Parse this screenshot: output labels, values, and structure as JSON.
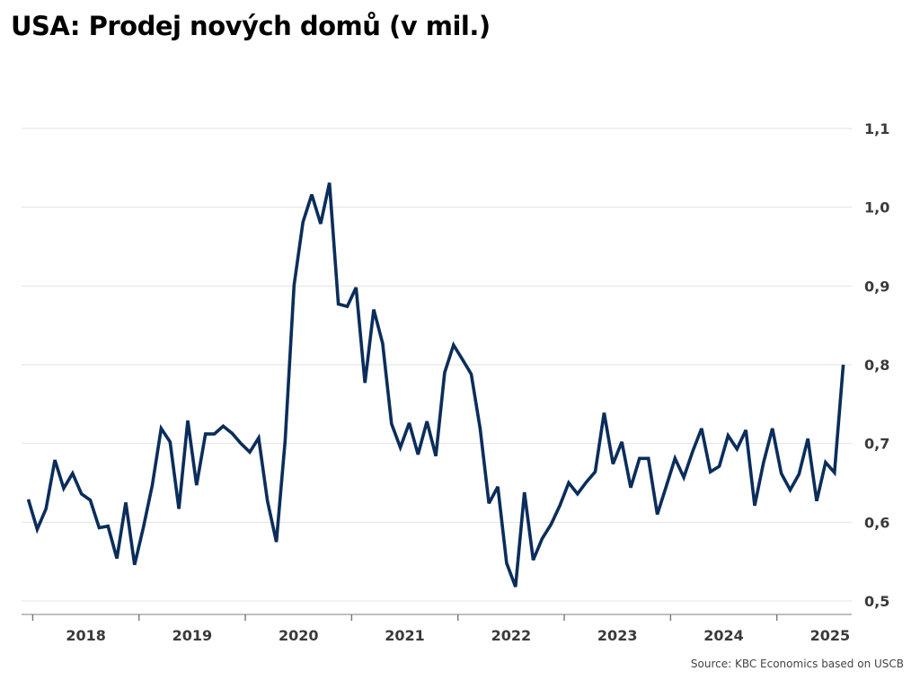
{
  "chart_data": {
    "type": "line",
    "title": "USA: Prodej nových domů (v mil.)",
    "source": "Source: KBC Economics based on USCB",
    "ylim": [
      0.5,
      1.1
    ],
    "yticks": [
      "0,5",
      "0,6",
      "0,7",
      "0,8",
      "0,9",
      "1,0",
      "1,1"
    ],
    "ytick_values": [
      0.5,
      0.6,
      0.7,
      0.8,
      0.9,
      1.0,
      1.1
    ],
    "xtick_labels": [
      "2018",
      "2019",
      "2020",
      "2021",
      "2022",
      "2023",
      "2024",
      "2025"
    ],
    "grid": true,
    "line_color": "#0b2d5b",
    "x": [
      "2017-12",
      "2018-01",
      "2018-02",
      "2018-03",
      "2018-04",
      "2018-05",
      "2018-06",
      "2018-07",
      "2018-08",
      "2018-09",
      "2018-10",
      "2018-11",
      "2018-12",
      "2019-01",
      "2019-02",
      "2019-03",
      "2019-04",
      "2019-05",
      "2019-06",
      "2019-07",
      "2019-08",
      "2019-09",
      "2019-10",
      "2019-11",
      "2019-12",
      "2020-01",
      "2020-02",
      "2020-03",
      "2020-04",
      "2020-05",
      "2020-06",
      "2020-07",
      "2020-08",
      "2020-09",
      "2020-10",
      "2020-11",
      "2020-12",
      "2021-01",
      "2021-02",
      "2021-03",
      "2021-04",
      "2021-05",
      "2021-06",
      "2021-07",
      "2021-08",
      "2021-09",
      "2021-10",
      "2021-11",
      "2021-12",
      "2022-01",
      "2022-02",
      "2022-03",
      "2022-04",
      "2022-05",
      "2022-06",
      "2022-07",
      "2022-08",
      "2022-09",
      "2022-10",
      "2022-11",
      "2022-12",
      "2023-01",
      "2023-02",
      "2023-03",
      "2023-04",
      "2023-05",
      "2023-06",
      "2023-07",
      "2023-08",
      "2023-09",
      "2023-10",
      "2023-11",
      "2023-12",
      "2024-01",
      "2024-02",
      "2024-03",
      "2024-04",
      "2024-05",
      "2024-06",
      "2024-07",
      "2024-08",
      "2024-09",
      "2024-10",
      "2024-11",
      "2024-12",
      "2025-01",
      "2025-02",
      "2025-03",
      "2025-04",
      "2025-05",
      "2025-06",
      "2025-07",
      "2025-08"
    ],
    "values": [
      0.629,
      0.591,
      0.617,
      0.679,
      0.643,
      0.662,
      0.636,
      0.628,
      0.593,
      0.595,
      0.554,
      0.625,
      0.546,
      0.594,
      0.647,
      0.719,
      0.702,
      0.617,
      0.729,
      0.647,
      0.712,
      0.712,
      0.722,
      0.713,
      0.7,
      0.689,
      0.707,
      0.627,
      0.575,
      0.704,
      0.901,
      0.981,
      1.016,
      0.979,
      1.031,
      0.877,
      0.874,
      0.898,
      0.777,
      0.87,
      0.827,
      0.725,
      0.695,
      0.726,
      0.686,
      0.728,
      0.684,
      0.79,
      0.825,
      0.807,
      0.788,
      0.719,
      0.624,
      0.645,
      0.548,
      0.518,
      0.638,
      0.552,
      0.579,
      0.597,
      0.621,
      0.65,
      0.636,
      0.651,
      0.664,
      0.739,
      0.674,
      0.702,
      0.644,
      0.681,
      0.681,
      0.61,
      0.645,
      0.681,
      0.657,
      0.69,
      0.719,
      0.664,
      0.671,
      0.71,
      0.693,
      0.717,
      0.621,
      0.676,
      0.719,
      0.662,
      0.641,
      0.661,
      0.706,
      0.627,
      0.676,
      0.663,
      0.8
    ]
  }
}
